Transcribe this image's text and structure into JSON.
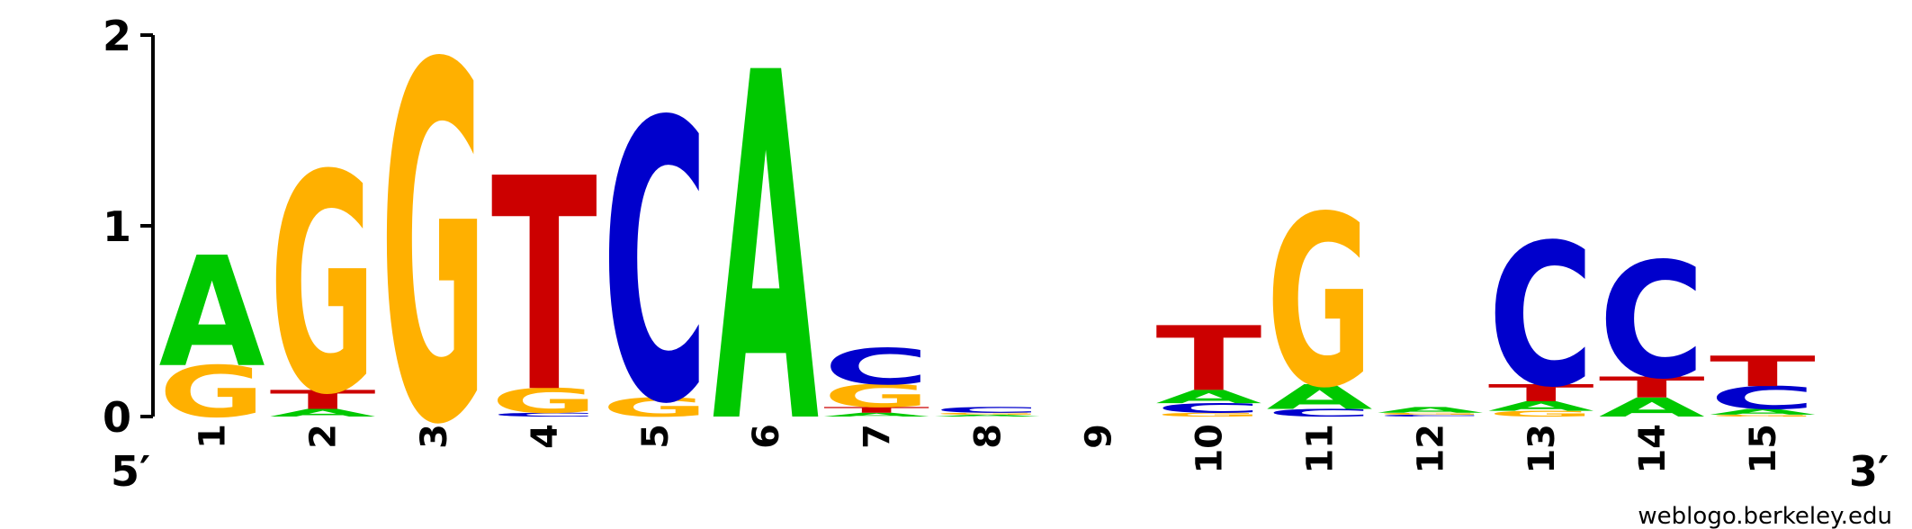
{
  "chart_data": {
    "type": "sequence-logo",
    "ylim": [
      0,
      2
    ],
    "y_ticks": [
      "0",
      "1",
      "2"
    ],
    "end_labels": {
      "left": "5′",
      "right": "3′"
    },
    "credit": "weblogo.berkeley.edu",
    "colors": {
      "A": "#00c800",
      "C": "#0000cc",
      "G": "#ffb000",
      "T": "#cc0000"
    },
    "positions": [
      {
        "label": "1",
        "stack": [
          [
            "G",
            0.27
          ],
          [
            "A",
            0.58
          ]
        ]
      },
      {
        "label": "2",
        "stack": [
          [
            "A",
            0.04
          ],
          [
            "T",
            0.1
          ],
          [
            "G",
            1.15
          ]
        ]
      },
      {
        "label": "3",
        "stack": [
          [
            "G",
            1.87
          ]
        ]
      },
      {
        "label": "4",
        "stack": [
          [
            "C",
            0.02
          ],
          [
            "G",
            0.13
          ],
          [
            "T",
            1.12
          ]
        ]
      },
      {
        "label": "5",
        "stack": [
          [
            "G",
            0.1
          ],
          [
            "C",
            1.47
          ]
        ]
      },
      {
        "label": "6",
        "stack": [
          [
            "A",
            1.83
          ]
        ]
      },
      {
        "label": "7",
        "stack": [
          [
            "A",
            0.02
          ],
          [
            "T",
            0.03
          ],
          [
            "G",
            0.12
          ],
          [
            "C",
            0.19
          ]
        ]
      },
      {
        "label": "8",
        "stack": [
          [
            "A",
            0.01
          ],
          [
            "G",
            0.01
          ],
          [
            "C",
            0.03
          ]
        ]
      },
      {
        "label": "9",
        "stack": []
      },
      {
        "label": "10",
        "stack": [
          [
            "G",
            0.02
          ],
          [
            "C",
            0.05
          ],
          [
            "A",
            0.07
          ],
          [
            "T",
            0.34
          ]
        ]
      },
      {
        "label": "11",
        "stack": [
          [
            "C",
            0.04
          ],
          [
            "A",
            0.13
          ],
          [
            "G",
            0.9
          ]
        ]
      },
      {
        "label": "12",
        "stack": [
          [
            "C",
            0.01
          ],
          [
            "G",
            0.01
          ],
          [
            "A",
            0.03
          ]
        ]
      },
      {
        "label": "13",
        "stack": [
          [
            "G",
            0.03
          ],
          [
            "A",
            0.05
          ],
          [
            "T",
            0.09
          ],
          [
            "C",
            0.75
          ]
        ]
      },
      {
        "label": "14",
        "stack": [
          [
            "A",
            0.1
          ],
          [
            "T",
            0.11
          ],
          [
            "C",
            0.61
          ]
        ]
      },
      {
        "label": "15",
        "stack": [
          [
            "G",
            0.01
          ],
          [
            "A",
            0.03
          ],
          [
            "C",
            0.12
          ],
          [
            "T",
            0.16
          ]
        ]
      }
    ]
  }
}
